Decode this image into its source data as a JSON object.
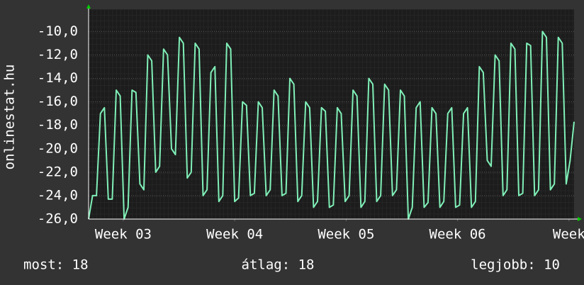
{
  "chart_data": {
    "type": "line",
    "y_label": "onlinestat.hu",
    "ylim": [
      -26,
      -8.1
    ],
    "yticks": [
      {
        "value": -26,
        "label": "-26,0"
      },
      {
        "value": -24,
        "label": "-24,0"
      },
      {
        "value": -22,
        "label": "-22,0"
      },
      {
        "value": -20,
        "label": "-20,0"
      },
      {
        "value": -18,
        "label": "-18,0"
      },
      {
        "value": -16,
        "label": "-16,0"
      },
      {
        "value": -14,
        "label": "-14,0"
      },
      {
        "value": -12,
        "label": "-12,0"
      },
      {
        "value": -10,
        "label": "-10,0"
      }
    ],
    "xlim": [
      0,
      30.5
    ],
    "xticks": [
      {
        "value": 2.18,
        "label": "Week 03"
      },
      {
        "value": 9.18,
        "label": "Week 04"
      },
      {
        "value": 16.18,
        "label": "Week 05"
      },
      {
        "value": 23.18,
        "label": "Week 06"
      },
      {
        "value": 30.18,
        "label": "Week"
      }
    ],
    "grid": true,
    "series": [
      {
        "color": "#80f0b8",
        "values": [
          -26,
          -24,
          -24,
          -17,
          -16.5,
          -24.3,
          -24.3,
          -15,
          -15.5,
          -26,
          -25,
          -15,
          -15.2,
          -23,
          -23.5,
          -12,
          -12.5,
          -22,
          -21.5,
          -11.5,
          -12,
          -20,
          -20.5,
          -10.5,
          -11,
          -22.5,
          -22,
          -11,
          -11.5,
          -24,
          -23.5,
          -13.5,
          -13,
          -24.5,
          -24,
          -11,
          -11.5,
          -24.5,
          -24.2,
          -16,
          -16.3,
          -24,
          -23.8,
          -16,
          -16.5,
          -24,
          -23.5,
          -15,
          -15.5,
          -24,
          -23.8,
          -14,
          -14.5,
          -24.5,
          -24,
          -16,
          -16.5,
          -25,
          -24.5,
          -16.5,
          -16.8,
          -25,
          -24.8,
          -16.5,
          -17,
          -24.5,
          -24,
          -15,
          -15.5,
          -25,
          -24.5,
          -14,
          -14.5,
          -24.5,
          -24,
          -14.5,
          -15,
          -24,
          -23.5,
          -15,
          -15.5,
          -26,
          -25,
          -16.5,
          -16,
          -25,
          -24.6,
          -16.5,
          -17,
          -25,
          -24.5,
          -17,
          -16.5,
          -25,
          -24.8,
          -17,
          -16.5,
          -25,
          -24.5,
          -13,
          -13.5,
          -21,
          -21.5,
          -12,
          -12.5,
          -24,
          -23.5,
          -11,
          -11.5,
          -24,
          -23.8,
          -11,
          -11.2,
          -24,
          -23.5,
          -10,
          -10.5,
          -23.5,
          -23,
          -10.5,
          -11,
          -23,
          -21,
          -17.7
        ]
      }
    ],
    "legend": [
      {
        "label": "most: 18"
      },
      {
        "label": "átlag: 18"
      },
      {
        "label": "legjobb: 10"
      }
    ]
  }
}
